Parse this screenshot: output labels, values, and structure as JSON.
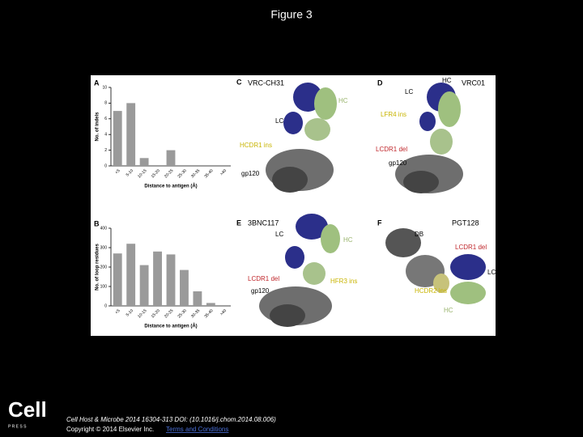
{
  "title": "Figure 3",
  "chart_data": [
    {
      "type": "bar",
      "panel": "A",
      "ylabel": "No. of indels",
      "xlabel": "Distance to antigen (Å)",
      "categories": [
        "<5",
        "5-10",
        "10-15",
        "15-20",
        "20-25",
        "25-30",
        "30-35",
        "35-40",
        ">40"
      ],
      "values": [
        7,
        8,
        1,
        0,
        2,
        0,
        0,
        0,
        0
      ],
      "color": "#9a9a9a",
      "ylim": [
        0,
        10
      ],
      "yticks": [
        0,
        2,
        4,
        6,
        8,
        10
      ]
    },
    {
      "type": "bar",
      "panel": "B",
      "ylabel": "No. of loop residues",
      "xlabel": "Distance to antigen (Å)",
      "categories": [
        "<5",
        "5-10",
        "10-15",
        "15-20",
        "20-25",
        "25-30",
        "30-35",
        "35-40",
        ">40"
      ],
      "values": [
        270,
        320,
        210,
        280,
        265,
        185,
        75,
        15,
        0
      ],
      "color": "#9a9a9a",
      "ylim": [
        0,
        400
      ],
      "yticks": [
        0,
        100,
        200,
        300,
        400
      ]
    }
  ],
  "structure_panels": [
    {
      "panel": "C",
      "name": "VRC-CH31",
      "labels": [
        "LC",
        "HC",
        "HCDR1 ins",
        "gp120"
      ]
    },
    {
      "panel": "D",
      "name": "VRC01",
      "labels": [
        "HC",
        "LC",
        "LFR4 ins",
        "LCDR1 del",
        "gp120"
      ]
    },
    {
      "panel": "E",
      "name": "3BNC117",
      "labels": [
        "LC",
        "HC",
        "LCDR1 del",
        "HFR3 ins",
        "gp120"
      ]
    },
    {
      "panel": "F",
      "name": "PGT128",
      "labels": [
        "DB",
        "LCDR1 del",
        "LC",
        "HCDR2 ins",
        "HC"
      ]
    }
  ],
  "footer": {
    "logo": "Cell",
    "logo_sub": "P R E S S",
    "citation": "Cell Host & Microbe 2014 16304-313 DOI: (10.1016/j.chom.2014.08.006)",
    "copyright": "Copyright © 2014 Elsevier Inc.",
    "link": "Terms and Conditions"
  }
}
